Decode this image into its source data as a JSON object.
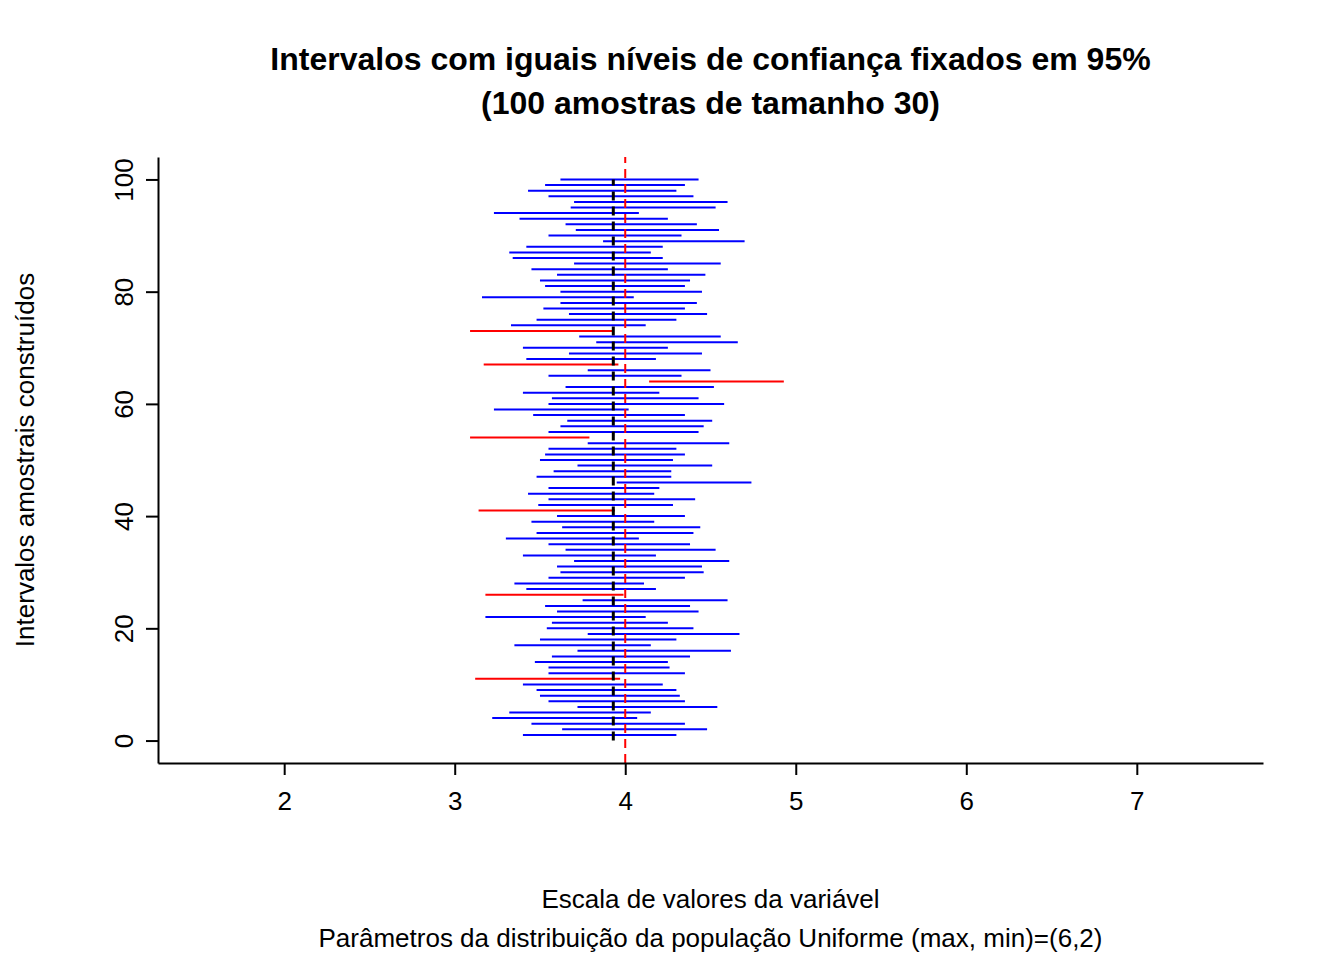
{
  "chart_data": {
    "type": "interval",
    "title": "Intervalos com iguais níveis de confiança fixados em 95%",
    "subtitle": "(100 amostras de tamanho 30)",
    "xlabel": [
      "Escala de valores da variável",
      "Parâmetros da distribuição da população Uniforme (max, min)=(6,2)"
    ],
    "ylabel": "Intervalos amostrais construídos",
    "xlim": [
      1.26,
      7.74
    ],
    "ylim": [
      -4,
      104
    ],
    "xticks": [
      2,
      3,
      4,
      5,
      6,
      7
    ],
    "yticks": [
      0,
      20,
      40,
      60,
      80,
      100
    ],
    "y": [
      1,
      2,
      3,
      4,
      5,
      6,
      7,
      8,
      9,
      10,
      11,
      12,
      13,
      14,
      15,
      16,
      17,
      18,
      19,
      20,
      21,
      22,
      23,
      24,
      25,
      26,
      27,
      28,
      29,
      30,
      31,
      32,
      33,
      34,
      35,
      36,
      37,
      38,
      39,
      40,
      41,
      42,
      43,
      44,
      45,
      46,
      47,
      48,
      49,
      50,
      51,
      52,
      53,
      54,
      55,
      56,
      57,
      58,
      59,
      60,
      61,
      62,
      63,
      64,
      65,
      66,
      67,
      68,
      69,
      70,
      71,
      72,
      73,
      74,
      75,
      76,
      77,
      78,
      79,
      80,
      81,
      82,
      83,
      84,
      85,
      86,
      87,
      88,
      89,
      90,
      91,
      92,
      93,
      94,
      95,
      96,
      97,
      98,
      99,
      100
    ],
    "lower": [
      3.4,
      3.63,
      3.45,
      3.22,
      3.32,
      3.72,
      3.55,
      3.5,
      3.48,
      3.4,
      3.12,
      3.55,
      3.55,
      3.47,
      3.57,
      3.72,
      3.35,
      3.5,
      3.78,
      3.54,
      3.57,
      3.18,
      3.6,
      3.53,
      3.75,
      3.18,
      3.42,
      3.35,
      3.55,
      3.62,
      3.6,
      3.7,
      3.4,
      3.65,
      3.55,
      3.3,
      3.48,
      3.63,
      3.45,
      3.6,
      3.14,
      3.49,
      3.55,
      3.43,
      3.55,
      3.95,
      3.48,
      3.58,
      3.72,
      3.5,
      3.53,
      3.55,
      3.78,
      3.09,
      3.55,
      3.62,
      3.66,
      3.46,
      3.23,
      3.55,
      3.57,
      3.4,
      3.65,
      4.14,
      3.55,
      3.78,
      3.17,
      3.42,
      3.67,
      3.4,
      3.83,
      3.73,
      3.09,
      3.33,
      3.48,
      3.67,
      3.52,
      3.62,
      3.16,
      3.62,
      3.53,
      3.5,
      3.6,
      3.45,
      3.7,
      3.34,
      3.32,
      3.42,
      3.87,
      3.55,
      3.71,
      3.65,
      3.38,
      3.23,
      3.68,
      3.7,
      3.55,
      3.43,
      3.53,
      3.62
    ],
    "upper": [
      4.3,
      4.48,
      4.35,
      4.07,
      4.15,
      4.54,
      4.35,
      4.32,
      4.3,
      4.22,
      3.97,
      4.35,
      4.26,
      4.25,
      4.38,
      4.62,
      4.15,
      4.3,
      4.67,
      4.4,
      4.25,
      4.12,
      4.43,
      4.38,
      4.6,
      3.99,
      4.18,
      4.11,
      4.35,
      4.46,
      4.45,
      4.61,
      4.18,
      4.53,
      4.38,
      4.08,
      4.4,
      4.44,
      4.17,
      4.35,
      3.94,
      4.28,
      4.41,
      4.17,
      4.2,
      4.74,
      4.27,
      4.27,
      4.51,
      4.28,
      4.35,
      4.3,
      4.61,
      3.79,
      4.43,
      4.46,
      4.51,
      4.35,
      4.02,
      4.58,
      4.43,
      4.2,
      4.52,
      4.93,
      4.33,
      4.5,
      3.96,
      4.18,
      4.45,
      4.25,
      4.66,
      4.56,
      3.93,
      4.12,
      4.3,
      4.48,
      4.35,
      4.42,
      4.05,
      4.45,
      4.35,
      4.38,
      4.47,
      4.25,
      4.56,
      4.22,
      4.15,
      4.22,
      4.7,
      4.33,
      4.55,
      4.42,
      4.25,
      4.08,
      4.53,
      4.6,
      4.4,
      4.3,
      4.35,
      4.43
    ],
    "colors": [
      "#0000ff",
      "#0000ff",
      "#0000ff",
      "#0000ff",
      "#0000ff",
      "#0000ff",
      "#0000ff",
      "#0000ff",
      "#0000ff",
      "#0000ff",
      "#ff0000",
      "#0000ff",
      "#0000ff",
      "#0000ff",
      "#0000ff",
      "#0000ff",
      "#0000ff",
      "#0000ff",
      "#0000ff",
      "#0000ff",
      "#0000ff",
      "#0000ff",
      "#0000ff",
      "#0000ff",
      "#0000ff",
      "#ff0000",
      "#0000ff",
      "#0000ff",
      "#0000ff",
      "#0000ff",
      "#0000ff",
      "#0000ff",
      "#0000ff",
      "#0000ff",
      "#0000ff",
      "#0000ff",
      "#0000ff",
      "#0000ff",
      "#0000ff",
      "#0000ff",
      "#ff0000",
      "#0000ff",
      "#0000ff",
      "#0000ff",
      "#0000ff",
      "#0000ff",
      "#0000ff",
      "#0000ff",
      "#0000ff",
      "#0000ff",
      "#0000ff",
      "#0000ff",
      "#0000ff",
      "#ff0000",
      "#0000ff",
      "#0000ff",
      "#0000ff",
      "#0000ff",
      "#0000ff",
      "#0000ff",
      "#0000ff",
      "#0000ff",
      "#0000ff",
      "#ff0000",
      "#0000ff",
      "#0000ff",
      "#ff0000",
      "#0000ff",
      "#0000ff",
      "#0000ff",
      "#0000ff",
      "#0000ff",
      "#ff0000",
      "#0000ff",
      "#0000ff",
      "#0000ff",
      "#0000ff",
      "#0000ff",
      "#0000ff",
      "#0000ff",
      "#0000ff",
      "#0000ff",
      "#0000ff",
      "#0000ff",
      "#0000ff",
      "#0000ff",
      "#0000ff",
      "#0000ff",
      "#0000ff",
      "#0000ff",
      "#0000ff",
      "#0000ff",
      "#0000ff",
      "#0000ff",
      "#0000ff",
      "#0000ff",
      "#0000ff",
      "#0000ff",
      "#0000ff",
      "#0000ff"
    ],
    "lines": [
      {
        "value": 3.93,
        "color": "#000000",
        "line_style": "dashed",
        "y_range": [
          0,
          100
        ]
      },
      {
        "value": 4,
        "color": "#ff0000",
        "line_style": "dashed"
      }
    ]
  }
}
